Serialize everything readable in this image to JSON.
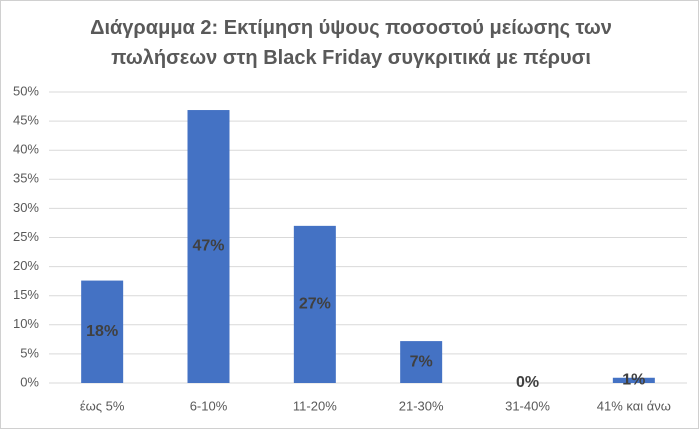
{
  "chart_data": {
    "type": "bar",
    "title": "Διάγραμμα 2: Εκτίμηση ύψους ποσοστού μείωσης των πωλήσεων στη Black Friday συγκριτικά με πέρυσι",
    "categories": [
      "έως 5%",
      "6-10%",
      "11-20%",
      "21-30%",
      "31-40%",
      "41% και άνω"
    ],
    "values": [
      17.6,
      46.9,
      27,
      7.2,
      0,
      0.9
    ],
    "value_labels": [
      "18%",
      "47%",
      "27%",
      "7%",
      "0%",
      "1%"
    ],
    "color": "#4472c4",
    "ylim": [
      0,
      50
    ],
    "yticks": [
      {
        "value": 0,
        "label": "0%"
      },
      {
        "value": 5,
        "label": "5%"
      },
      {
        "value": 10,
        "label": "10%"
      },
      {
        "value": 15,
        "label": "15%"
      },
      {
        "value": 20,
        "label": "20%"
      },
      {
        "value": 25,
        "label": "25%"
      },
      {
        "value": 30,
        "label": "30%"
      },
      {
        "value": 35,
        "label": "35%"
      },
      {
        "value": 40,
        "label": "40%"
      },
      {
        "value": 45,
        "label": "45%"
      },
      {
        "value": 50,
        "label": "50%"
      }
    ],
    "grid": true
  }
}
